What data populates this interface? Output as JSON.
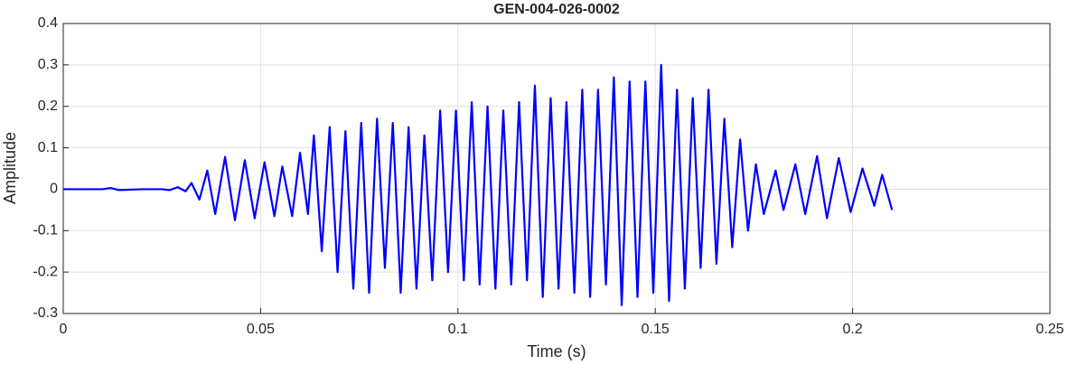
{
  "chart_data": {
    "type": "line",
    "title": "GEN-004-026-0002",
    "xlabel": "Time (s)",
    "ylabel": "Amplitude",
    "x": [
      0,
      0.005,
      0.01,
      0.012,
      0.014,
      0.02,
      0.025,
      0.027,
      0.029,
      0.031,
      0.0325,
      0.0345,
      0.0365,
      0.0385,
      0.041,
      0.0435,
      0.046,
      0.0485,
      0.051,
      0.0535,
      0.0555,
      0.058,
      0.06,
      0.062,
      0.0635,
      0.0655,
      0.0675,
      0.0695,
      0.0715,
      0.0735,
      0.0755,
      0.0775,
      0.0795,
      0.0815,
      0.0835,
      0.0855,
      0.0875,
      0.0895,
      0.0915,
      0.0935,
      0.0955,
      0.0975,
      0.0995,
      0.1015,
      0.1035,
      0.1055,
      0.1075,
      0.1095,
      0.1115,
      0.1135,
      0.1155,
      0.1175,
      0.1195,
      0.1215,
      0.1235,
      0.1255,
      0.1275,
      0.1295,
      0.1315,
      0.1335,
      0.1355,
      0.1375,
      0.1395,
      0.1415,
      0.1435,
      0.1455,
      0.1475,
      0.1495,
      0.1515,
      0.1535,
      0.1555,
      0.1575,
      0.1595,
      0.1615,
      0.1635,
      0.1655,
      0.1675,
      0.1695,
      0.1715,
      0.1735,
      0.1755,
      0.1775,
      0.1805,
      0.1825,
      0.1855,
      0.188,
      0.191,
      0.1935,
      0.1965,
      0.1995,
      0.2025,
      0.2055,
      0.2075,
      0.21
    ],
    "series": [
      {
        "color": "#0000ff",
        "values": [
          0,
          0,
          0,
          0.003,
          -0.002,
          0,
          0,
          -0.002,
          0.005,
          -0.005,
          0.015,
          -0.025,
          0.045,
          -0.06,
          0.078,
          -0.075,
          0.07,
          -0.07,
          0.065,
          -0.065,
          0.055,
          -0.065,
          0.088,
          -0.06,
          0.13,
          -0.15,
          0.15,
          -0.2,
          0.14,
          -0.24,
          0.16,
          -0.25,
          0.17,
          -0.19,
          0.16,
          -0.25,
          0.15,
          -0.24,
          0.13,
          -0.22,
          0.19,
          -0.2,
          0.19,
          -0.22,
          0.21,
          -0.23,
          0.2,
          -0.24,
          0.19,
          -0.23,
          0.21,
          -0.22,
          0.25,
          -0.26,
          0.22,
          -0.24,
          0.21,
          -0.25,
          0.24,
          -0.26,
          0.24,
          -0.23,
          0.27,
          -0.28,
          0.26,
          -0.26,
          0.26,
          -0.25,
          0.3,
          -0.27,
          0.24,
          -0.24,
          0.22,
          -0.19,
          0.24,
          -0.18,
          0.17,
          -0.14,
          0.12,
          -0.1,
          0.06,
          -0.06,
          0.045,
          -0.05,
          0.06,
          -0.06,
          0.08,
          -0.07,
          0.075,
          -0.055,
          0.05,
          -0.04,
          0.035,
          -0.05
        ]
      }
    ],
    "xlim": [
      0,
      0.25
    ],
    "xticks": [
      0,
      0.05,
      0.1,
      0.15,
      0.2,
      0.25
    ],
    "ylim": [
      -0.3,
      0.4
    ],
    "yticks": [
      -0.3,
      -0.2,
      -0.1,
      0,
      0.1,
      0.2,
      0.3,
      0.4
    ],
    "grid": true
  }
}
